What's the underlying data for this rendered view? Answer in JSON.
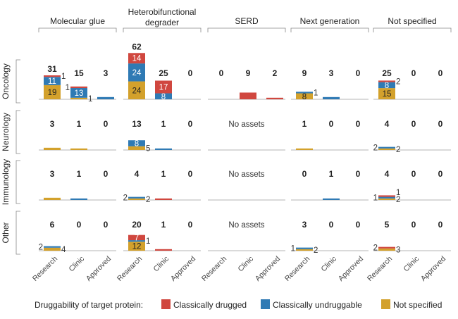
{
  "chart_data": {
    "type": "bar",
    "stacked": true,
    "columns": [
      "Molecular glue",
      "Heterobifunctional degrader",
      "SERD",
      "Next generation",
      "Not specified"
    ],
    "rows": [
      "Oncology",
      "Neurology",
      "Immunology",
      "Other"
    ],
    "phases": [
      "Research",
      "Clinic",
      "Approved"
    ],
    "no_assets_label": "No assets",
    "legend": {
      "title": "Druggability of target protein:",
      "placement": "bottom",
      "entries": [
        {
          "key": "drugged",
          "name": "Classically drugged",
          "color": "#d0473f"
        },
        {
          "key": "undruggable",
          "name": "Classically undruggable",
          "color": "#2f7ab4"
        },
        {
          "key": "not_specified",
          "name": "Not specified",
          "color": "#d3a12c"
        }
      ]
    },
    "segment_order": [
      "not_specified",
      "undruggable",
      "drugged"
    ],
    "cells": [
      [
        {
          "totals": [
            31,
            15,
            3
          ],
          "stacks": [
            {
              "not_specified": 19,
              "undruggable": 11,
              "drugged": 1
            },
            {
              "drugged": 1,
              "undruggable": 13,
              "not_specified": 1
            },
            {
              "undruggable": 3
            }
          ]
        },
        {
          "totals": [
            62,
            25,
            0
          ],
          "stacks": [
            {
              "not_specified": 24,
              "undruggable": 24,
              "drugged": 14
            },
            {
              "undruggable": 8,
              "drugged": 17
            },
            {}
          ]
        },
        {
          "totals": [
            0,
            9,
            2
          ],
          "stacks": [
            {},
            {
              "drugged": 9
            },
            {
              "drugged": 2
            }
          ]
        },
        {
          "totals": [
            9,
            3,
            0
          ],
          "stacks": [
            {
              "not_specified": 8,
              "undruggable": 1
            },
            {
              "undruggable": 3
            },
            {}
          ]
        },
        {
          "totals": [
            25,
            0,
            0
          ],
          "stacks": [
            {
              "not_specified": 15,
              "undruggable": 8,
              "drugged": 2
            },
            {},
            {}
          ]
        }
      ],
      [
        {
          "totals": [
            3,
            1,
            0
          ],
          "stacks": [
            {
              "not_specified": 3
            },
            {
              "not_specified": 1
            },
            {}
          ]
        },
        {
          "totals": [
            13,
            1,
            0
          ],
          "stacks": [
            {
              "not_specified": 5,
              "undruggable": 8
            },
            {
              "undruggable": 1
            },
            {}
          ]
        },
        null,
        {
          "totals": [
            1,
            0,
            0
          ],
          "stacks": [
            {
              "not_specified": 1
            },
            {},
            {}
          ]
        },
        {
          "totals": [
            4,
            0,
            0
          ],
          "stacks": [
            {
              "not_specified": 2,
              "undruggable": 2
            },
            {},
            {}
          ]
        }
      ],
      [
        {
          "totals": [
            3,
            1,
            0
          ],
          "stacks": [
            {
              "not_specified": 3
            },
            {
              "undruggable": 1
            },
            {}
          ]
        },
        {
          "totals": [
            4,
            1,
            0
          ],
          "stacks": [
            {
              "not_specified": 2,
              "undruggable": 2
            },
            {
              "drugged": 1
            },
            {}
          ]
        },
        null,
        {
          "totals": [
            0,
            1,
            0
          ],
          "stacks": [
            {},
            {
              "undruggable": 1
            },
            {}
          ]
        },
        {
          "totals": [
            4,
            0,
            0
          ],
          "stacks": [
            {
              "not_specified": 2,
              "undruggable": 1,
              "drugged": 1
            },
            {},
            {}
          ]
        }
      ],
      [
        {
          "totals": [
            6,
            0,
            0
          ],
          "stacks": [
            {
              "not_specified": 4,
              "undruggable": 2
            },
            {},
            {}
          ]
        },
        {
          "totals": [
            20,
            1,
            0
          ],
          "stacks": [
            {
              "not_specified": 12,
              "undruggable": 1,
              "drugged": 7
            },
            {
              "drugged": 1
            },
            {}
          ]
        },
        null,
        {
          "totals": [
            3,
            0,
            0
          ],
          "stacks": [
            {
              "not_specified": 2,
              "undruggable": 1
            },
            {},
            {}
          ]
        },
        {
          "totals": [
            5,
            0,
            0
          ],
          "stacks": [
            {
              "not_specified": 3,
              "drugged": 2
            },
            {},
            {}
          ]
        }
      ]
    ]
  }
}
